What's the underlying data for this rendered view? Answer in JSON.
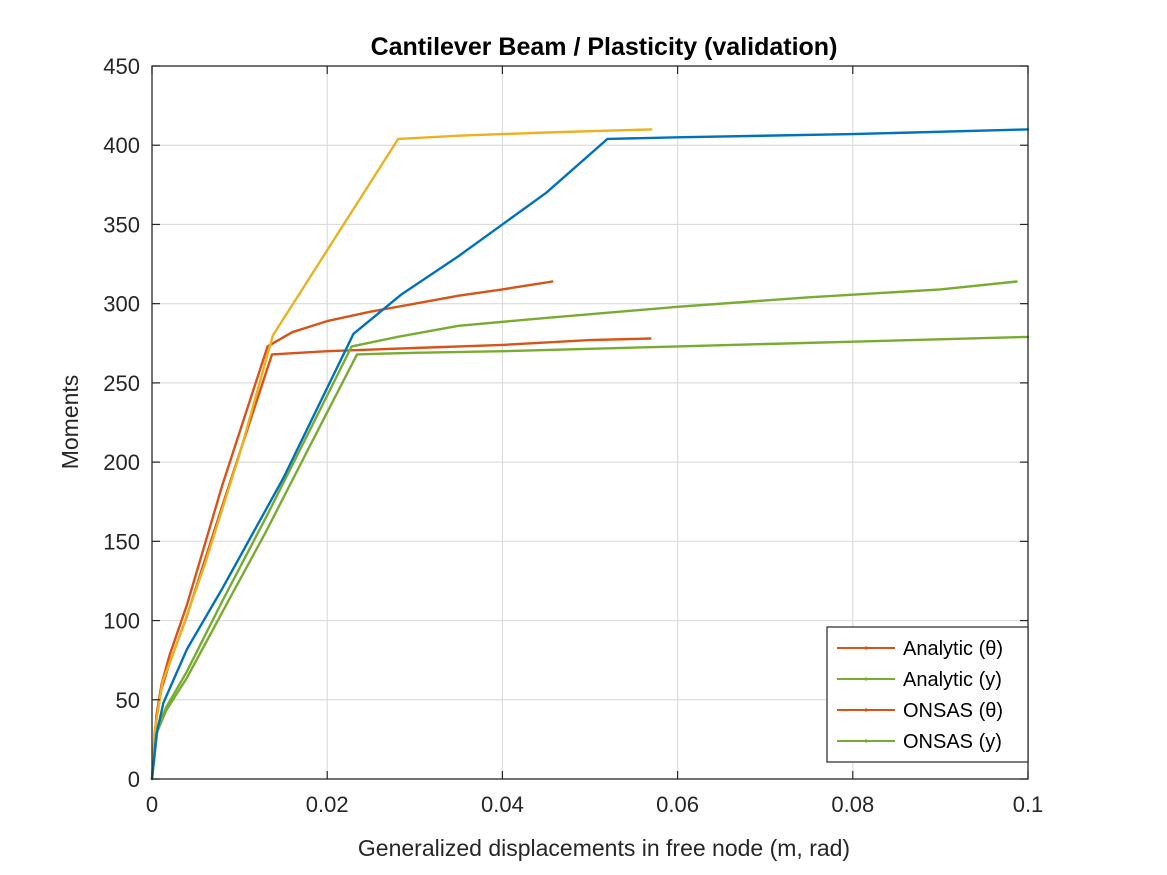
{
  "chart_data": {
    "type": "line",
    "title": "Cantilever Beam / Plasticity (validation)",
    "xlabel": "Generalized displacements in free node (m, rad)",
    "ylabel": "Moments",
    "xlim": [
      0,
      0.1
    ],
    "ylim": [
      0,
      450
    ],
    "xticks": [
      0,
      0.02,
      0.04,
      0.06,
      0.08,
      0.1
    ],
    "xtick_labels": [
      "0",
      "0.02",
      "0.04",
      "0.06",
      "0.08",
      "0.1"
    ],
    "yticks": [
      0,
      50,
      100,
      150,
      200,
      250,
      300,
      350,
      400,
      450
    ],
    "ytick_labels": [
      "0",
      "50",
      "100",
      "150",
      "200",
      "250",
      "300",
      "350",
      "400",
      "450"
    ],
    "grid": true,
    "legend_position": "bottom-right",
    "legend": [
      {
        "label": "Analytic (θ)",
        "color": "#D95319"
      },
      {
        "label": "Analytic (y)",
        "color": "#77AC30"
      },
      {
        "label": "ONSAS (θ)",
        "color": "#D95319"
      },
      {
        "label": "ONSAS (y)",
        "color": "#77AC30"
      }
    ],
    "series": [
      {
        "color": "#D95319",
        "x": [
          0,
          0.0005,
          0.0011,
          0.002,
          0.004,
          0.008,
          0.0132,
          0.016,
          0.02,
          0.025,
          0.03,
          0.035,
          0.04,
          0.0457
        ],
        "y": [
          0,
          40,
          60,
          78,
          110,
          185,
          273,
          282,
          289,
          295,
          300,
          305,
          309,
          314
        ]
      },
      {
        "color": "#D95319",
        "x": [
          0,
          0.0005,
          0.0011,
          0.002,
          0.004,
          0.008,
          0.0137,
          0.02,
          0.03,
          0.04,
          0.05,
          0.0569
        ],
        "y": [
          0,
          38,
          57,
          73,
          103,
          172,
          268,
          270,
          272,
          274,
          277,
          278
        ]
      },
      {
        "color": "#77AC30",
        "x": [
          0,
          0.0006,
          0.0016,
          0.004,
          0.008,
          0.013,
          0.018,
          0.0228,
          0.028,
          0.035,
          0.045,
          0.06,
          0.075,
          0.09,
          0.0987
        ],
        "y": [
          0,
          32,
          45,
          68,
          112,
          165,
          220,
          273,
          279,
          286,
          291,
          298,
          304,
          309,
          314
        ]
      },
      {
        "color": "#77AC30",
        "x": [
          0,
          0.0006,
          0.0016,
          0.004,
          0.008,
          0.013,
          0.018,
          0.0234,
          0.03,
          0.04,
          0.06,
          0.08,
          0.1
        ],
        "y": [
          0,
          30,
          43,
          64,
          105,
          156,
          210,
          268,
          269,
          270,
          273,
          276,
          279
        ]
      },
      {
        "color": "#EDB120",
        "x": [
          0,
          0.0003,
          0.0012,
          0.003,
          0.006,
          0.01,
          0.0138,
          0.0281,
          0.035,
          0.045,
          0.057
        ],
        "y": [
          0,
          30,
          61,
          88,
          135,
          205,
          280,
          404,
          406,
          408,
          410
        ]
      },
      {
        "color": "#0072BD",
        "x": [
          0,
          0.0005,
          0.0013,
          0.004,
          0.008,
          0.015,
          0.023,
          0.0285,
          0.035,
          0.045,
          0.052,
          0.06,
          0.08,
          0.1
        ],
        "y": [
          0,
          28,
          48,
          82,
          120,
          190,
          281,
          306,
          330,
          370,
          404,
          405,
          407,
          410
        ]
      }
    ]
  }
}
